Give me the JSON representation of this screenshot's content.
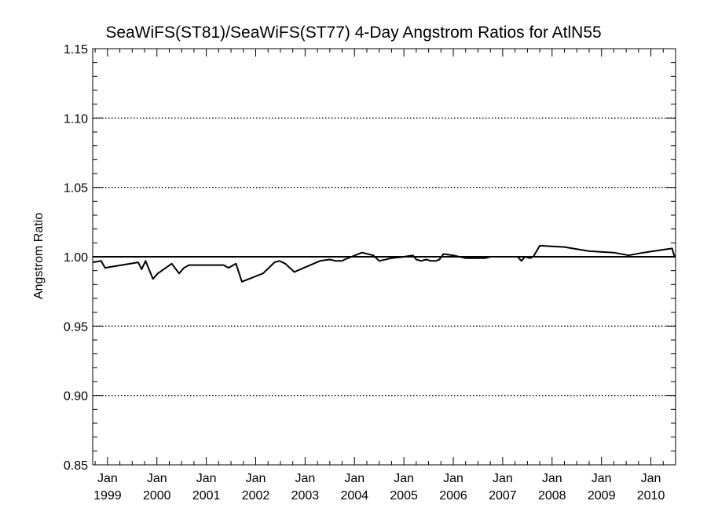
{
  "chart_data": {
    "type": "line",
    "title": "SeaWiFS(ST81)/SeaWiFS(ST77) 4-Day Angstrom Ratios for AtlN55",
    "xlabel": "",
    "ylabel": "Angstrom Ratio",
    "ylim": [
      0.85,
      1.15
    ],
    "xlim": [
      1998.7,
      2010.5
    ],
    "y_ticks": [
      "0.85",
      "0.90",
      "0.95",
      "1.00",
      "1.05",
      "1.10",
      "1.15"
    ],
    "x_ticks": [
      {
        "month": "Jan",
        "year": "1999"
      },
      {
        "month": "Jan",
        "year": "2000"
      },
      {
        "month": "Jan",
        "year": "2001"
      },
      {
        "month": "Jan",
        "year": "2002"
      },
      {
        "month": "Jan",
        "year": "2003"
      },
      {
        "month": "Jan",
        "year": "2004"
      },
      {
        "month": "Jan",
        "year": "2005"
      },
      {
        "month": "Jan",
        "year": "2006"
      },
      {
        "month": "Jan",
        "year": "2007"
      },
      {
        "month": "Jan",
        "year": "2008"
      },
      {
        "month": "Jan",
        "year": "2009"
      },
      {
        "month": "Jan",
        "year": "2010"
      }
    ],
    "reference_line": 1.0,
    "grid": "dotted horizontal",
    "series": [
      {
        "x": [
          1998.7,
          1998.87,
          1998.95,
          1999.62,
          1999.69,
          1999.77,
          1999.92,
          2000.02,
          2000.3,
          2000.45,
          2000.55,
          2000.65,
          2001.35,
          2001.45,
          2001.6,
          2001.72,
          2002.15,
          2002.38,
          2002.48,
          2002.6,
          2002.78,
          2003.3,
          2003.5,
          2003.62,
          2003.75,
          2003.8,
          2004.15,
          2004.38,
          2004.5,
          2004.75,
          2005.0,
          2005.18,
          2005.25,
          2005.35,
          2005.45,
          2005.55,
          2005.65,
          2005.72,
          2005.8,
          2006.0,
          2006.25,
          2006.38,
          2006.55,
          2006.65,
          2006.75,
          2007.3,
          2007.38,
          2007.45,
          2007.55,
          2007.62,
          2007.75,
          2008.25,
          2008.75,
          2009.25,
          2009.55,
          2009.85,
          2010.43,
          2010.48,
          2010.5
        ],
        "y": [
          0.996,
          0.997,
          0.992,
          0.996,
          0.991,
          0.997,
          0.984,
          0.988,
          0.995,
          0.988,
          0.992,
          0.994,
          0.994,
          0.992,
          0.995,
          0.982,
          0.988,
          0.996,
          0.997,
          0.995,
          0.989,
          0.997,
          0.998,
          0.997,
          0.997,
          0.998,
          1.003,
          1.001,
          0.997,
          0.999,
          1.0,
          1.001,
          0.998,
          0.997,
          0.998,
          0.997,
          0.997,
          0.998,
          1.002,
          1.001,
          0.999,
          0.999,
          0.999,
          0.999,
          1.0,
          1.0,
          0.997,
          1.0,
          0.999,
          1.0,
          1.008,
          1.007,
          1.004,
          1.003,
          1.001,
          1.003,
          1.006,
          1.0,
          1.0
        ]
      }
    ]
  }
}
